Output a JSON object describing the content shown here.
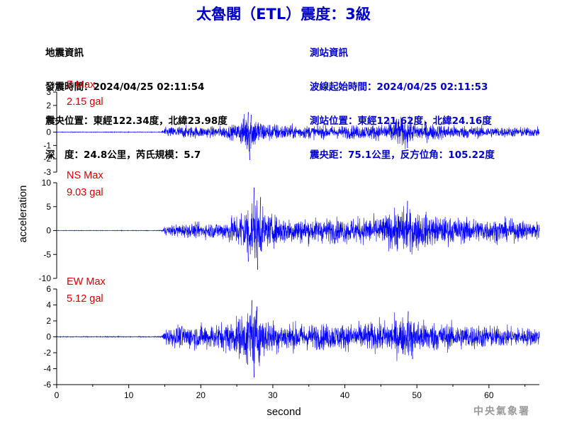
{
  "title": "太魯閣（ETL）震度：3級",
  "event_info": {
    "heading": "地震資訊",
    "origin_time": "發震時間：2024/04/25 02:11:54",
    "epicenter": "震央位置：東經122.34度，北緯23.98度",
    "depth_magnitude": "深　度：24.8公里，芮氏規模：5.7"
  },
  "station_info": {
    "heading": "測站資訊",
    "wave_start": "波線起始時間：2024/04/25 02:11:53",
    "station_location": "測站位置：東經121.62度，北緯24.16度",
    "distance_azimuth": "震央距：75.1公里，反方位角：105.22度"
  },
  "footer": "中央氣象署",
  "chart_data": {
    "type": "line",
    "xlabel": "second",
    "ylabel": "acceleration",
    "xlim": [
      0,
      67
    ],
    "xticks": [
      0,
      10,
      20,
      30,
      40,
      50,
      60
    ],
    "series_color": "#0000ff",
    "label_color": "#dd0000",
    "arrival_time": 15,
    "panels": [
      {
        "name": "Z Max",
        "max_label": "2.15 gal",
        "ylim": [
          -3,
          3
        ],
        "yticks": [
          -3,
          -2,
          -1,
          0,
          1,
          2,
          3
        ],
        "envelope": [
          [
            0,
            0.02
          ],
          [
            14.5,
            0.02
          ],
          [
            15,
            0.3
          ],
          [
            17,
            0.4
          ],
          [
            22,
            0.35
          ],
          [
            25,
            0.5
          ],
          [
            26.5,
            1.4
          ],
          [
            27.5,
            1.0
          ],
          [
            29,
            0.6
          ],
          [
            33,
            0.45
          ],
          [
            38,
            0.4
          ],
          [
            45,
            0.5
          ],
          [
            48,
            1.0
          ],
          [
            50,
            0.6
          ],
          [
            55,
            0.45
          ],
          [
            60,
            0.35
          ],
          [
            67,
            0.3
          ]
        ],
        "peaks": [
          [
            26.6,
            1.5
          ],
          [
            26.8,
            -2.1
          ],
          [
            27.0,
            1.3
          ],
          [
            47.2,
            1.0
          ],
          [
            48.7,
            -1.2
          ],
          [
            49.2,
            1.1
          ]
        ]
      },
      {
        "name": "NS Max",
        "max_label": "9.03 gal",
        "ylim": [
          -10,
          10
        ],
        "yticks": [
          -10,
          -5,
          0,
          5,
          10
        ],
        "envelope": [
          [
            0,
            0.05
          ],
          [
            14.5,
            0.05
          ],
          [
            15,
            0.8
          ],
          [
            17,
            1.2
          ],
          [
            20,
            1.3
          ],
          [
            23,
            1.6
          ],
          [
            25,
            3.0
          ],
          [
            27,
            5.5
          ],
          [
            28,
            5.0
          ],
          [
            29,
            3.0
          ],
          [
            31,
            2.5
          ],
          [
            35,
            2.2
          ],
          [
            40,
            2.2
          ],
          [
            45,
            2.5
          ],
          [
            48,
            4.0
          ],
          [
            50,
            3.5
          ],
          [
            53,
            2.5
          ],
          [
            58,
            2.2
          ],
          [
            62,
            2.0
          ],
          [
            67,
            1.6
          ]
        ],
        "peaks": [
          [
            27.4,
            9.0
          ],
          [
            27.9,
            -8.2
          ],
          [
            28.3,
            7.0
          ],
          [
            26.6,
            -6.5
          ],
          [
            48.7,
            6.2
          ],
          [
            49.1,
            -4.5
          ]
        ]
      },
      {
        "name": "EW Max",
        "max_label": "5.12 gal",
        "ylim": [
          -6,
          6
        ],
        "yticks": [
          -6,
          -4,
          -2,
          0,
          2,
          4,
          6
        ],
        "envelope": [
          [
            0,
            0.05
          ],
          [
            14.5,
            0.05
          ],
          [
            15,
            0.9
          ],
          [
            17,
            1.2
          ],
          [
            20,
            1.3
          ],
          [
            23,
            1.5
          ],
          [
            25,
            2.0
          ],
          [
            27,
            3.2
          ],
          [
            28,
            2.8
          ],
          [
            29,
            2.0
          ],
          [
            31,
            1.6
          ],
          [
            35,
            1.4
          ],
          [
            40,
            1.4
          ],
          [
            45,
            1.6
          ],
          [
            48,
            2.2
          ],
          [
            50,
            1.9
          ],
          [
            53,
            1.5
          ],
          [
            58,
            1.3
          ],
          [
            62,
            1.1
          ],
          [
            67,
            0.9
          ]
        ],
        "peaks": [
          [
            27.1,
            4.6
          ],
          [
            27.4,
            -5.1
          ],
          [
            27.8,
            3.8
          ],
          [
            26.5,
            -3.5
          ],
          [
            48.8,
            3.2
          ],
          [
            49.4,
            -2.8
          ]
        ]
      }
    ]
  }
}
